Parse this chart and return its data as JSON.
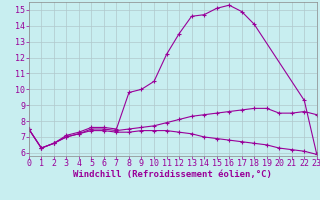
{
  "xlabel": "Windchill (Refroidissement éolien,°C)",
  "bg_color": "#c8eef0",
  "grid_color": "#b0c8cc",
  "line_color": "#990099",
  "x_ticks": [
    0,
    1,
    2,
    3,
    4,
    5,
    6,
    7,
    8,
    9,
    10,
    11,
    12,
    13,
    14,
    15,
    16,
    17,
    18,
    19,
    20,
    21,
    22,
    23
  ],
  "y_ticks": [
    6,
    7,
    8,
    9,
    10,
    11,
    12,
    13,
    14,
    15
  ],
  "xlim": [
    0,
    23
  ],
  "ylim": [
    5.8,
    15.5
  ],
  "curves": [
    {
      "x": [
        0,
        1,
        2,
        3,
        4,
        5,
        6,
        7,
        8,
        9,
        10,
        11,
        12,
        13,
        14,
        15,
        16,
        17,
        18,
        22,
        23
      ],
      "y": [
        7.5,
        6.3,
        6.6,
        7.1,
        7.3,
        7.6,
        7.6,
        7.5,
        9.8,
        10.0,
        10.5,
        12.2,
        13.5,
        14.6,
        14.7,
        15.1,
        15.3,
        14.9,
        14.1,
        9.3,
        5.9
      ]
    },
    {
      "x": [
        0,
        1,
        2,
        3,
        4,
        5,
        6,
        7,
        8,
        9,
        10,
        11,
        12,
        13,
        14,
        15,
        16,
        17,
        18,
        19,
        20,
        21,
        22,
        23
      ],
      "y": [
        7.5,
        6.3,
        6.6,
        7.0,
        7.2,
        7.5,
        7.5,
        7.4,
        7.5,
        7.6,
        7.7,
        7.9,
        8.1,
        8.3,
        8.4,
        8.5,
        8.6,
        8.7,
        8.8,
        8.8,
        8.5,
        8.5,
        8.6,
        8.4
      ]
    },
    {
      "x": [
        0,
        1,
        2,
        3,
        4,
        5,
        6,
        7,
        8,
        9,
        10,
        11,
        12,
        13,
        14,
        15,
        16,
        17,
        18,
        19,
        20,
        21,
        22,
        23
      ],
      "y": [
        7.5,
        6.3,
        6.6,
        7.0,
        7.2,
        7.4,
        7.4,
        7.3,
        7.3,
        7.4,
        7.4,
        7.4,
        7.3,
        7.2,
        7.0,
        6.9,
        6.8,
        6.7,
        6.6,
        6.5,
        6.3,
        6.2,
        6.1,
        5.9
      ]
    }
  ],
  "xlabel_fontsize": 6.5,
  "tick_fontsize": 6.0,
  "marker": "+"
}
